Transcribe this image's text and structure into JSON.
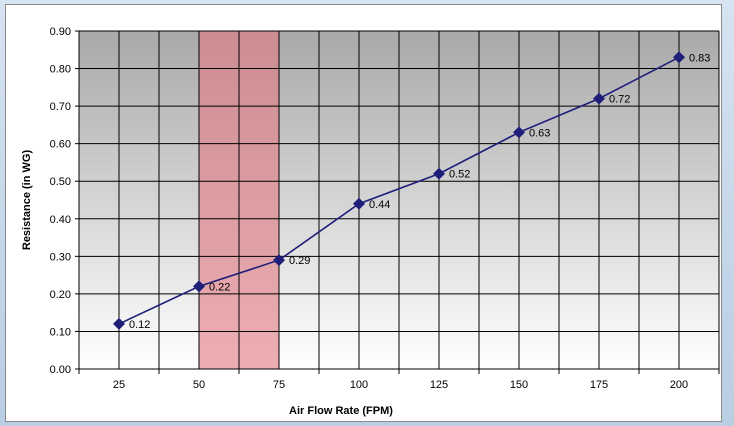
{
  "chart_data": {
    "type": "line",
    "title": "",
    "xlabel": "Air Flow Rate (FPM)",
    "ylabel": "Resistance (in WG)",
    "x": [
      25,
      50,
      75,
      100,
      125,
      150,
      175,
      200
    ],
    "x_tick_labels": [
      "25",
      "50",
      "75",
      "100",
      "125",
      "150",
      "175",
      "200"
    ],
    "series": [
      {
        "values": [
          0.12,
          0.22,
          0.29,
          0.44,
          0.52,
          0.63,
          0.72,
          0.83
        ],
        "data_labels": [
          "0.12",
          "0.22",
          "0.29",
          "0.44",
          "0.52",
          "0.63",
          "0.72",
          "0.83"
        ],
        "color": "#1f1f7a",
        "marker": "diamond"
      }
    ],
    "ylim": [
      0,
      0.9
    ],
    "y_tick_values": [
      0,
      0.1,
      0.2,
      0.3,
      0.4,
      0.5,
      0.6,
      0.7,
      0.8,
      0.9
    ],
    "y_tick_labels": [
      "0.00",
      "0.10",
      "0.20",
      "0.30",
      "0.40",
      "0.50",
      "0.60",
      "0.70",
      "0.80",
      "0.90"
    ],
    "highlight_band": {
      "from": 50,
      "to": 75,
      "color": "#e07c84"
    },
    "plot_background": {
      "top": "#a9a9a9",
      "bottom": "#ffffff"
    },
    "grid": true,
    "legend": "none"
  }
}
